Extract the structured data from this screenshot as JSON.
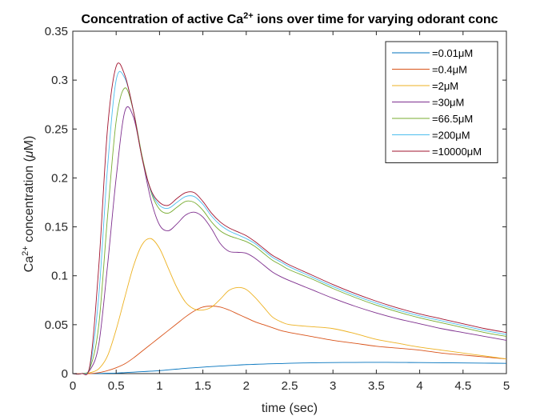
{
  "chart_data": {
    "type": "line",
    "title_main": "Concentration of active Ca",
    "title_sup": "2+",
    "title_rest": " ions over time for varying odorant conc",
    "xlabel": "time (sec)",
    "ylabel_pre": "Ca",
    "ylabel_sup": "2+",
    "ylabel_post": " concentration (",
    "ylabel_mu": "μ",
    "ylabel_end": "M)",
    "xlim": [
      0,
      5
    ],
    "ylim": [
      0,
      0.35
    ],
    "xticks": [
      "0",
      "0.5",
      "1",
      "1.5",
      "2",
      "2.5",
      "3",
      "3.5",
      "4",
      "4.5",
      "5"
    ],
    "yticks": [
      "0",
      "0.05",
      "0.1",
      "0.15",
      "0.2",
      "0.25",
      "0.3",
      "0.35"
    ],
    "grid": false,
    "legend_position": "top-right",
    "x": [
      0,
      0.1,
      0.2,
      0.3,
      0.4,
      0.5,
      0.6,
      0.7,
      0.8,
      0.9,
      1.0,
      1.1,
      1.2,
      1.3,
      1.4,
      1.5,
      1.6,
      1.7,
      1.8,
      1.9,
      2.0,
      2.1,
      2.2,
      2.3,
      2.4,
      2.5,
      2.75,
      3.0,
      3.25,
      3.5,
      3.75,
      4.0,
      4.25,
      4.5,
      4.75,
      5.0
    ],
    "series": [
      {
        "name": "=0.01μM",
        "color": "#0072BD",
        "values": [
          0,
          0,
          0,
          0.0001,
          0.0003,
          0.0005,
          0.001,
          0.0015,
          0.002,
          0.0025,
          0.003,
          0.0038,
          0.0046,
          0.0054,
          0.006,
          0.0066,
          0.0072,
          0.0077,
          0.0082,
          0.0087,
          0.0092,
          0.0095,
          0.0098,
          0.0101,
          0.0103,
          0.0106,
          0.011,
          0.0113,
          0.0114,
          0.0115,
          0.0114,
          0.0113,
          0.0111,
          0.0109,
          0.0107,
          0.0105
        ]
      },
      {
        "name": "=0.4μM",
        "color": "#D95319",
        "values": [
          0,
          0,
          0,
          0.001,
          0.003,
          0.006,
          0.01,
          0.016,
          0.023,
          0.03,
          0.037,
          0.044,
          0.051,
          0.058,
          0.064,
          0.068,
          0.069,
          0.068,
          0.065,
          0.061,
          0.057,
          0.053,
          0.05,
          0.047,
          0.044,
          0.042,
          0.038,
          0.034,
          0.031,
          0.028,
          0.026,
          0.024,
          0.021,
          0.019,
          0.017,
          0.015
        ]
      },
      {
        "name": "=2μM",
        "color": "#EDB120",
        "values": [
          0,
          0,
          0.001,
          0.005,
          0.018,
          0.045,
          0.078,
          0.11,
          0.132,
          0.138,
          0.128,
          0.108,
          0.088,
          0.073,
          0.066,
          0.065,
          0.068,
          0.076,
          0.085,
          0.088,
          0.086,
          0.078,
          0.068,
          0.058,
          0.053,
          0.05,
          0.048,
          0.046,
          0.041,
          0.035,
          0.031,
          0.027,
          0.024,
          0.021,
          0.018,
          0.015
        ]
      },
      {
        "name": "=30μM",
        "color": "#7E2F8E",
        "values": [
          0,
          0,
          0.004,
          0.03,
          0.11,
          0.2,
          0.268,
          0.262,
          0.22,
          0.178,
          0.152,
          0.146,
          0.153,
          0.162,
          0.165,
          0.16,
          0.148,
          0.133,
          0.125,
          0.124,
          0.123,
          0.118,
          0.111,
          0.104,
          0.099,
          0.095,
          0.086,
          0.077,
          0.069,
          0.062,
          0.056,
          0.051,
          0.046,
          0.042,
          0.038,
          0.034
        ]
      },
      {
        "name": "=66.5μM",
        "color": "#77AC30",
        "values": [
          0,
          0,
          0.006,
          0.05,
          0.16,
          0.258,
          0.292,
          0.268,
          0.222,
          0.186,
          0.168,
          0.164,
          0.17,
          0.176,
          0.175,
          0.167,
          0.155,
          0.146,
          0.141,
          0.138,
          0.135,
          0.13,
          0.123,
          0.116,
          0.111,
          0.106,
          0.097,
          0.087,
          0.078,
          0.07,
          0.063,
          0.057,
          0.052,
          0.047,
          0.042,
          0.038
        ]
      },
      {
        "name": "=200μM",
        "color": "#4DBEEE",
        "values": [
          0,
          0,
          0.008,
          0.08,
          0.21,
          0.3,
          0.302,
          0.268,
          0.22,
          0.187,
          0.172,
          0.169,
          0.175,
          0.181,
          0.181,
          0.173,
          0.161,
          0.152,
          0.146,
          0.142,
          0.138,
          0.133,
          0.126,
          0.119,
          0.114,
          0.109,
          0.099,
          0.089,
          0.08,
          0.072,
          0.065,
          0.059,
          0.054,
          0.049,
          0.044,
          0.04
        ]
      },
      {
        "name": "=10000μM",
        "color": "#A2142F",
        "values": [
          0,
          0,
          0.01,
          0.11,
          0.25,
          0.314,
          0.305,
          0.268,
          0.22,
          0.188,
          0.175,
          0.172,
          0.179,
          0.185,
          0.185,
          0.176,
          0.164,
          0.155,
          0.149,
          0.145,
          0.141,
          0.135,
          0.128,
          0.121,
          0.116,
          0.111,
          0.101,
          0.091,
          0.082,
          0.074,
          0.067,
          0.061,
          0.056,
          0.051,
          0.046,
          0.042
        ]
      }
    ]
  }
}
